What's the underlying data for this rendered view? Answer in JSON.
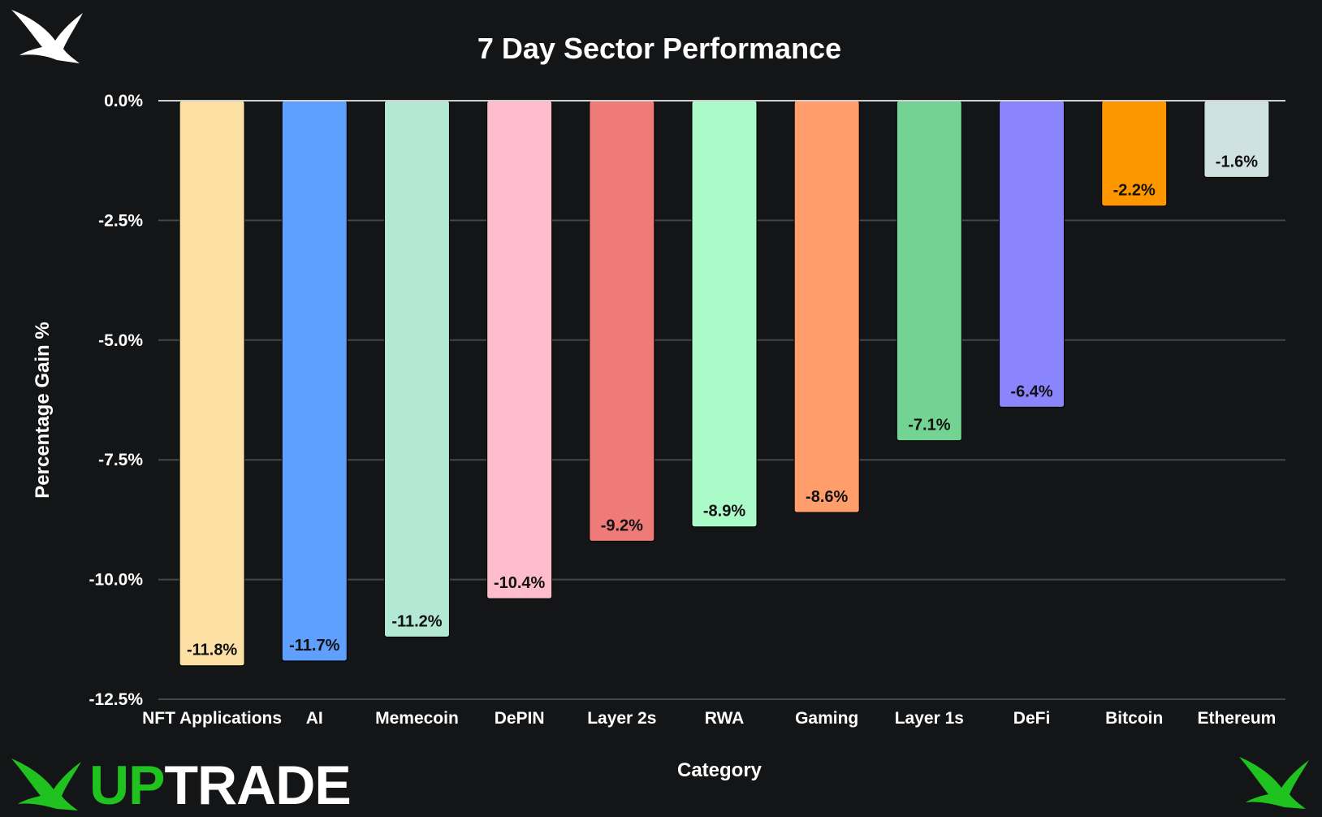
{
  "brand": {
    "part1": "UP",
    "part2": "TRADE",
    "green": "#1fc21f",
    "white": "#ffffff"
  },
  "colors": {
    "background": "#141516",
    "grid": "#444648",
    "zero_line": "#cfcfcf",
    "label_text": "#111111"
  },
  "chart_data": {
    "type": "bar",
    "title": "7 Day Sector Performance",
    "xlabel": "Category",
    "ylabel": "Percentage Gain %",
    "ylim": [
      -12.5,
      0
    ],
    "yticks": [
      0,
      -2.5,
      -5,
      -7.5,
      -10,
      -12.5
    ],
    "ytick_labels": [
      "0.0%",
      "-2.5%",
      "-5.0%",
      "-7.5%",
      "-10.0%",
      "-12.5%"
    ],
    "grid": true,
    "categories": [
      "NFT Applications",
      "AI",
      "Memecoin",
      "DePIN",
      "Layer 2s",
      "RWA",
      "Gaming",
      "Layer 1s",
      "DeFi",
      "Bitcoin",
      "Ethereum"
    ],
    "values": [
      -11.8,
      -11.7,
      -11.2,
      -10.4,
      -9.2,
      -8.9,
      -8.6,
      -7.1,
      -6.4,
      -2.2,
      -1.6
    ],
    "data_labels": [
      "-11.8%",
      "-11.7%",
      "-11.2%",
      "-10.4%",
      "-9.2%",
      "-8.9%",
      "-8.6%",
      "-7.1%",
      "-6.4%",
      "-2.2%",
      "-1.6%"
    ],
    "bar_colors": [
      "#fde0a4",
      "#5f9ffd",
      "#b3e8d5",
      "#ffbccb",
      "#ef7b78",
      "#abfbc9",
      "#ff9e6b",
      "#73d392",
      "#8a85fc",
      "#fe9600",
      "#cfe1e0"
    ]
  }
}
